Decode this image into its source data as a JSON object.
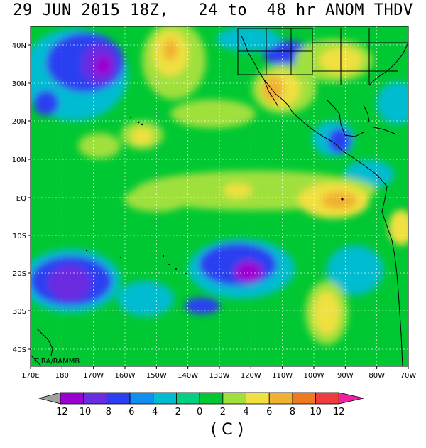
{
  "header": {
    "title": "29 JUN 2015 18Z,   24 to  48 hr ANOM THDV"
  },
  "map": {
    "lat_labels": [
      "40N",
      "30N",
      "20N",
      "10N",
      "EQ",
      "10S",
      "20S",
      "30S",
      "40S"
    ],
    "lon_labels": [
      "170E",
      "180",
      "170W",
      "160W",
      "150W",
      "140W",
      "130W",
      "120W",
      "110W",
      "100W",
      "90W",
      "80W",
      "70W"
    ],
    "credit": "CIRA/RAMMB",
    "base_color": "#00c832",
    "land_line_color": "#000000"
  },
  "colorbar": {
    "colors": [
      "#9b00d2",
      "#6a2ce0",
      "#2b3ff0",
      "#0f8ff0",
      "#00bcd0",
      "#00d080",
      "#00c832",
      "#a0e03c",
      "#f0e040",
      "#f0b030",
      "#f07820",
      "#f03c3c",
      "#f020a0"
    ],
    "underflow_color": "#a0a0a0",
    "tick_labels": [
      "-12",
      "-10",
      "-8",
      "-6",
      "-4",
      "-2",
      "0",
      "2",
      "4",
      "6",
      "8",
      "10",
      "12"
    ],
    "unit": "( C )"
  }
}
